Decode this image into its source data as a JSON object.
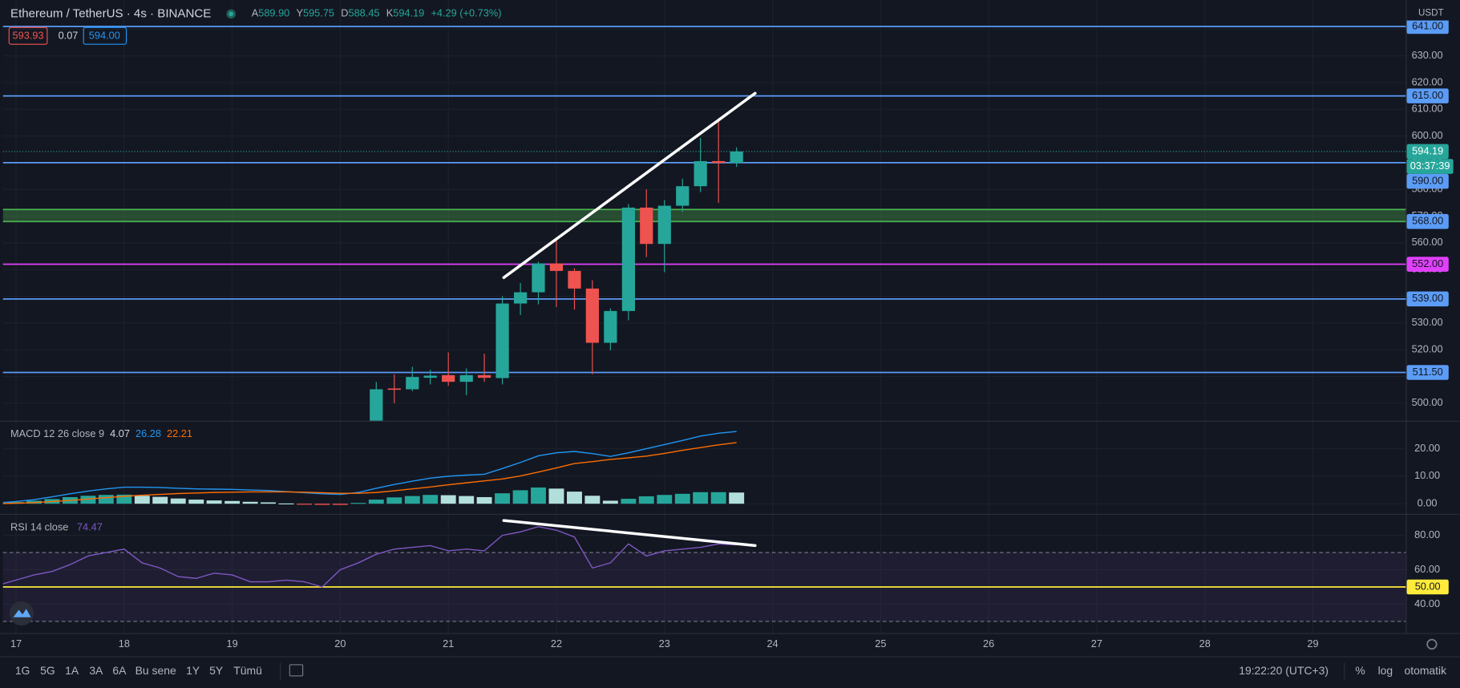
{
  "header": {
    "symbol": "Ethereum / TetherUS · 4s · BINANCE",
    "ohlc": [
      {
        "prefix": "A",
        "value": "589.90"
      },
      {
        "prefix": "Y",
        "value": "595.75"
      },
      {
        "prefix": "D",
        "value": "588.45"
      },
      {
        "prefix": "K",
        "value": "594.19"
      }
    ],
    "change": "+4.29 (+0.73%)",
    "sell": "593.93",
    "spread": "0.07",
    "buy": "594.00",
    "currency": "USDT"
  },
  "chart_data": [
    {
      "type": "candlestick",
      "x": [
        20.333,
        20.5,
        20.667,
        20.833,
        21,
        21.167,
        21.333,
        21.5,
        21.667,
        21.833,
        22,
        22.167,
        22.333,
        22.5,
        22.667,
        22.833,
        23,
        23.167,
        23.333,
        23.5,
        23.667
      ],
      "open": [
        492,
        505.5,
        505.2,
        509.5,
        510.5,
        508,
        510.5,
        509.4,
        537.3,
        541.5,
        552.3,
        549.5,
        542.9,
        522.6,
        534.5,
        573.2,
        559.6,
        573.9,
        581.2,
        590.6,
        589.9
      ],
      "high": [
        508,
        510.8,
        513.6,
        512.5,
        519,
        513,
        518.5,
        540,
        545,
        553,
        561.5,
        550.5,
        546,
        535.5,
        574.5,
        580,
        576,
        584,
        599.3,
        606.6,
        595.75
      ],
      "low": [
        488,
        500,
        504.5,
        507,
        506.5,
        503,
        508,
        507,
        533,
        537,
        536,
        535,
        510.8,
        519.8,
        531,
        554.7,
        549,
        571.6,
        579,
        575,
        588.45
      ],
      "close": [
        505.2,
        505,
        509.8,
        510.3,
        508,
        510.5,
        509.5,
        537.3,
        541.5,
        552.3,
        549.5,
        542.9,
        522.6,
        534.5,
        573.2,
        559.6,
        573.9,
        581.2,
        590.6,
        589.9,
        594.19
      ],
      "colors": {
        "up": "#26a69a",
        "down": "#ef5350"
      },
      "xlim": [
        16.879,
        29.86
      ],
      "xticks": [
        17,
        18,
        19,
        20,
        21,
        22,
        23,
        24,
        25,
        26,
        27,
        28,
        29
      ],
      "ylim": [
        493.4,
        650.9
      ],
      "yticks": [
        {
          "value": 500,
          "label": "500.00"
        },
        {
          "value": 510,
          "label": "510.00"
        },
        {
          "value": 520,
          "label": "520.00"
        },
        {
          "value": 530,
          "label": "530.00"
        },
        {
          "value": 540,
          "label": "540.00"
        },
        {
          "value": 550,
          "label": "550.00"
        },
        {
          "value": 560,
          "label": "560.00"
        },
        {
          "value": 570,
          "label": "570.00"
        },
        {
          "value": 580,
          "label": "580.00"
        },
        {
          "value": 590,
          "label": "590.00"
        },
        {
          "value": 600,
          "label": "600.00"
        },
        {
          "value": 610,
          "label": "610.00"
        },
        {
          "value": 620,
          "label": "620.00"
        },
        {
          "value": 630,
          "label": "630.00"
        },
        {
          "value": 640,
          "label": "640.00"
        }
      ],
      "grid": true,
      "levels": [
        {
          "value": 641,
          "label": "641.00",
          "color": "#5b9cf6"
        },
        {
          "value": 615,
          "label": "615.00",
          "color": "#5b9cf6"
        },
        {
          "value": 590,
          "label": "590.00",
          "color": "#5b9cf6"
        },
        {
          "value": 552,
          "label": "552.00",
          "color": "#e040fb"
        },
        {
          "value": 539,
          "label": "539.00",
          "color": "#5b9cf6"
        },
        {
          "value": 511.5,
          "label": "511.50",
          "color": "#5b9cf6"
        }
      ],
      "zone": {
        "range": [
          568,
          572.5
        ],
        "label": "568.00",
        "color": "#4caf50"
      },
      "last_price": {
        "value": 594.19,
        "label": "594.19",
        "countdown": "03:37:39",
        "color": "#26a69a"
      },
      "trendlines": [
        {
          "x": [
            21.513,
            23.839
          ],
          "y": [
            547,
            616
          ],
          "color": "#ffffff"
        }
      ]
    },
    {
      "type": "macd",
      "title": "MACD 12 26 close 9",
      "legend_values": [
        "4.07",
        "26.28",
        "22.21"
      ],
      "x": [
        16.833,
        17,
        17.167,
        17.333,
        17.5,
        17.667,
        17.833,
        18,
        18.167,
        18.333,
        18.5,
        18.667,
        18.833,
        19,
        19.167,
        19.333,
        19.5,
        19.667,
        19.833,
        20,
        20.167,
        20.333,
        20.5,
        20.667,
        20.833,
        21,
        21.167,
        21.333,
        21.5,
        21.667,
        21.833,
        22,
        22.167,
        22.333,
        22.5,
        22.667,
        22.833,
        23,
        23.167,
        23.333,
        23.5,
        23.667
      ],
      "histogram": [
        0.3,
        0.6,
        1.1,
        1.7,
        2.4,
        2.9,
        3.2,
        3.3,
        2.9,
        2.5,
        1.9,
        1.5,
        1.2,
        1.0,
        0.7,
        0.5,
        0.1,
        -0.2,
        -0.4,
        -0.4,
        0.3,
        1.5,
        2.3,
        2.8,
        3.2,
        3.1,
        2.8,
        2.4,
        3.8,
        4.9,
        5.9,
        5.5,
        4.4,
        2.9,
        1.1,
        1.8,
        2.7,
        3.2,
        3.6,
        4.2,
        4.2,
        4.07
      ],
      "histogram_colors": {
        "up": "#26a69a",
        "up_fading": "#b2dfdb",
        "down": "#ff5252",
        "down_fading": "#ffcdd2"
      },
      "series": [
        {
          "color": "#2196f3",
          "values": [
            0.3,
            0.8,
            1.5,
            2.5,
            3.6,
            4.6,
            5.4,
            6.0,
            6.0,
            5.9,
            5.6,
            5.4,
            5.3,
            5.2,
            5.0,
            4.8,
            4.4,
            4.0,
            3.6,
            3.4,
            4.1,
            5.6,
            7.0,
            8.2,
            9.3,
            10.0,
            10.4,
            10.7,
            12.8,
            15.0,
            17.4,
            18.5,
            19.0,
            18.2,
            17.2,
            18.5,
            20.0,
            21.5,
            23.0,
            24.6,
            25.6,
            26.28
          ]
        },
        {
          "color": "#ff6d00",
          "values": [
            0.0,
            0.2,
            0.4,
            0.8,
            1.2,
            1.7,
            2.2,
            2.7,
            3.1,
            3.4,
            3.7,
            3.9,
            4.1,
            4.2,
            4.3,
            4.3,
            4.3,
            4.2,
            4.0,
            3.8,
            3.8,
            4.1,
            4.7,
            5.4,
            6.1,
            6.9,
            7.6,
            8.3,
            9.0,
            10.1,
            11.5,
            13.0,
            14.6,
            15.3,
            16.1,
            16.7,
            17.3,
            18.3,
            19.4,
            20.4,
            21.4,
            22.21
          ]
        }
      ],
      "ylim": [
        -3.7,
        29.8
      ],
      "yticks": [
        {
          "value": 0,
          "label": "0.00"
        },
        {
          "value": 10,
          "label": "10.00"
        },
        {
          "value": 20,
          "label": "20.00"
        }
      ],
      "grid": true
    },
    {
      "type": "line",
      "title": "RSI 14 close",
      "legend_values": [
        "74.47"
      ],
      "x": [
        16.833,
        17,
        17.167,
        17.333,
        17.5,
        17.667,
        17.833,
        18,
        18.167,
        18.333,
        18.5,
        18.667,
        18.833,
        19,
        19.167,
        19.333,
        19.5,
        19.667,
        19.833,
        20,
        20.167,
        20.333,
        20.5,
        20.667,
        20.833,
        21,
        21.167,
        21.333,
        21.5,
        21.667,
        21.833,
        22,
        22.167,
        22.333,
        22.5,
        22.667,
        22.833,
        23,
        23.167,
        23.333,
        23.5,
        23.667
      ],
      "series": [
        {
          "color": "#7e57c2",
          "values": [
            51,
            54,
            57,
            59,
            63,
            68,
            70,
            72,
            64,
            61,
            56,
            55,
            58,
            57,
            53,
            53,
            54,
            53,
            50,
            60,
            64,
            69,
            72,
            73,
            74,
            71,
            72,
            71,
            80,
            82,
            85,
            83,
            79,
            61,
            64,
            75,
            68,
            71,
            72,
            73,
            75,
            74.47
          ]
        }
      ],
      "band": [
        30,
        70
      ],
      "band_color": "#7e57c2",
      "levels": [
        {
          "value": 50,
          "label": "50.00",
          "color": "#ffeb3b"
        }
      ],
      "ylim": [
        23.2,
        91.9
      ],
      "yticks": [
        {
          "value": 40,
          "label": "40.00"
        },
        {
          "value": 60,
          "label": "60.00"
        },
        {
          "value": 80,
          "label": "80.00"
        }
      ],
      "grid": true,
      "trendlines": [
        {
          "x": [
            21.513,
            23.839
          ],
          "y": [
            88.6,
            74.05
          ],
          "color": "#ffffff"
        }
      ]
    }
  ],
  "toolbar": {
    "ranges": [
      "1G",
      "5G",
      "1A",
      "3A",
      "6A",
      "Bu sene",
      "1Y",
      "5Y",
      "Tümü"
    ],
    "clock": "19:22:20 (UTC+3)",
    "percent": "%",
    "log": "log",
    "auto": "otomatik"
  }
}
